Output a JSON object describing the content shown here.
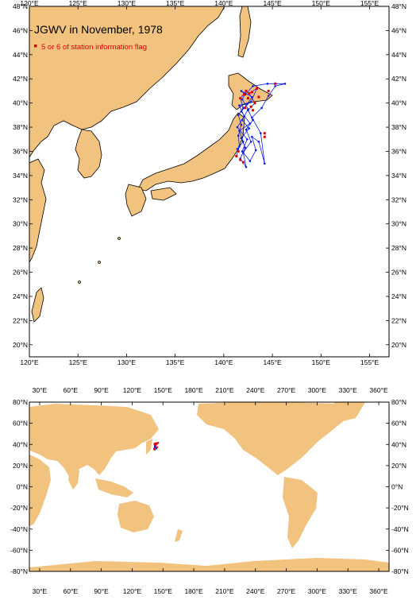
{
  "title": "JGWV in November, 1978",
  "legend": {
    "label": "5 or 6 of station information flag",
    "color": "#e00000"
  },
  "colors": {
    "land": "#f2c27f",
    "ocean": "#ffffff",
    "track": "#0a1ee0",
    "flag": "#e00000",
    "frame": "#000000"
  },
  "top_map": {
    "lon_ticks": [
      "120°E",
      "125°E",
      "130°E",
      "135°E",
      "140°E",
      "145°E",
      "150°E",
      "155°E"
    ],
    "lat_ticks": [
      "48°N",
      "46°N",
      "44°N",
      "42°N",
      "40°N",
      "38°N",
      "36°N",
      "34°N",
      "32°N",
      "30°N",
      "28°N",
      "26°N",
      "24°N",
      "22°N",
      "20°N"
    ]
  },
  "bottom_map": {
    "lon_ticks": [
      "30°E",
      "60°E",
      "90°E",
      "120°E",
      "150°E",
      "180°E",
      "210°E",
      "240°E",
      "270°E",
      "300°E",
      "330°E",
      "360°E"
    ],
    "lat_ticks": [
      "80°N",
      "60°N",
      "40°N",
      "20°N",
      "0°N",
      "-20°N",
      "-40°N",
      "-60°N",
      "-80°N"
    ]
  },
  "track_points": [
    [
      141.3,
      35.6
    ],
    [
      141.6,
      36.4
    ],
    [
      141.5,
      37.3
    ],
    [
      141.8,
      38.2
    ],
    [
      141.5,
      39.0
    ],
    [
      142.0,
      39.6
    ],
    [
      141.7,
      40.4
    ],
    [
      142.3,
      41.0
    ],
    [
      141.9,
      40.3
    ],
    [
      142.5,
      39.5
    ],
    [
      141.9,
      38.6
    ],
    [
      142.6,
      37.9
    ],
    [
      141.8,
      37.1
    ],
    [
      142.2,
      36.3
    ],
    [
      141.7,
      35.4
    ],
    [
      142.3,
      34.7
    ],
    [
      142.0,
      35.9
    ],
    [
      142.8,
      36.8
    ],
    [
      142.3,
      37.8
    ],
    [
      143.0,
      38.6
    ],
    [
      142.5,
      39.4
    ],
    [
      143.2,
      40.0
    ],
    [
      142.6,
      40.8
    ],
    [
      143.4,
      41.2
    ],
    [
      142.8,
      40.1
    ],
    [
      141.6,
      39.8
    ],
    [
      142.1,
      38.9
    ],
    [
      141.4,
      38.0
    ],
    [
      142.4,
      37.0
    ],
    [
      141.9,
      36.0
    ],
    [
      142.7,
      35.2
    ],
    [
      143.3,
      36.1
    ],
    [
      142.9,
      37.2
    ],
    [
      143.6,
      36.8
    ],
    [
      144.2,
      35.0
    ],
    [
      143.8,
      37.5
    ],
    [
      142.9,
      38.8
    ],
    [
      143.9,
      39.6
    ],
    [
      144.6,
      40.6
    ],
    [
      145.3,
      41.4
    ],
    [
      146.3,
      41.6
    ],
    [
      144.5,
      41.6
    ],
    [
      143.0,
      41.4
    ],
    [
      142.2,
      40.7
    ],
    [
      141.8,
      41.0
    ],
    [
      142.9,
      40.5
    ],
    [
      142.4,
      39.9
    ],
    [
      141.8,
      39.3
    ],
    [
      142.7,
      38.3
    ],
    [
      141.6,
      37.7
    ],
    [
      142.0,
      36.8
    ],
    [
      141.4,
      36.2
    ]
  ],
  "flag_points": [
    [
      141.3,
      35.6
    ],
    [
      141.5,
      36.0
    ],
    [
      141.7,
      35.3
    ],
    [
      142.0,
      35.1
    ],
    [
      142.3,
      41.0
    ],
    [
      142.6,
      40.8
    ],
    [
      142.9,
      40.9
    ],
    [
      143.2,
      40.0
    ],
    [
      142.5,
      40.4
    ],
    [
      142.8,
      39.7
    ],
    [
      143.4,
      41.2
    ],
    [
      144.6,
      41.0
    ],
    [
      145.3,
      41.6
    ],
    [
      144.2,
      37.5
    ],
    [
      144.2,
      37.2
    ],
    [
      141.7,
      40.4
    ],
    [
      142.1,
      40.7
    ],
    [
      143.6,
      40.5
    ],
    [
      143.0,
      39.4
    ],
    [
      142.2,
      39.6
    ]
  ]
}
